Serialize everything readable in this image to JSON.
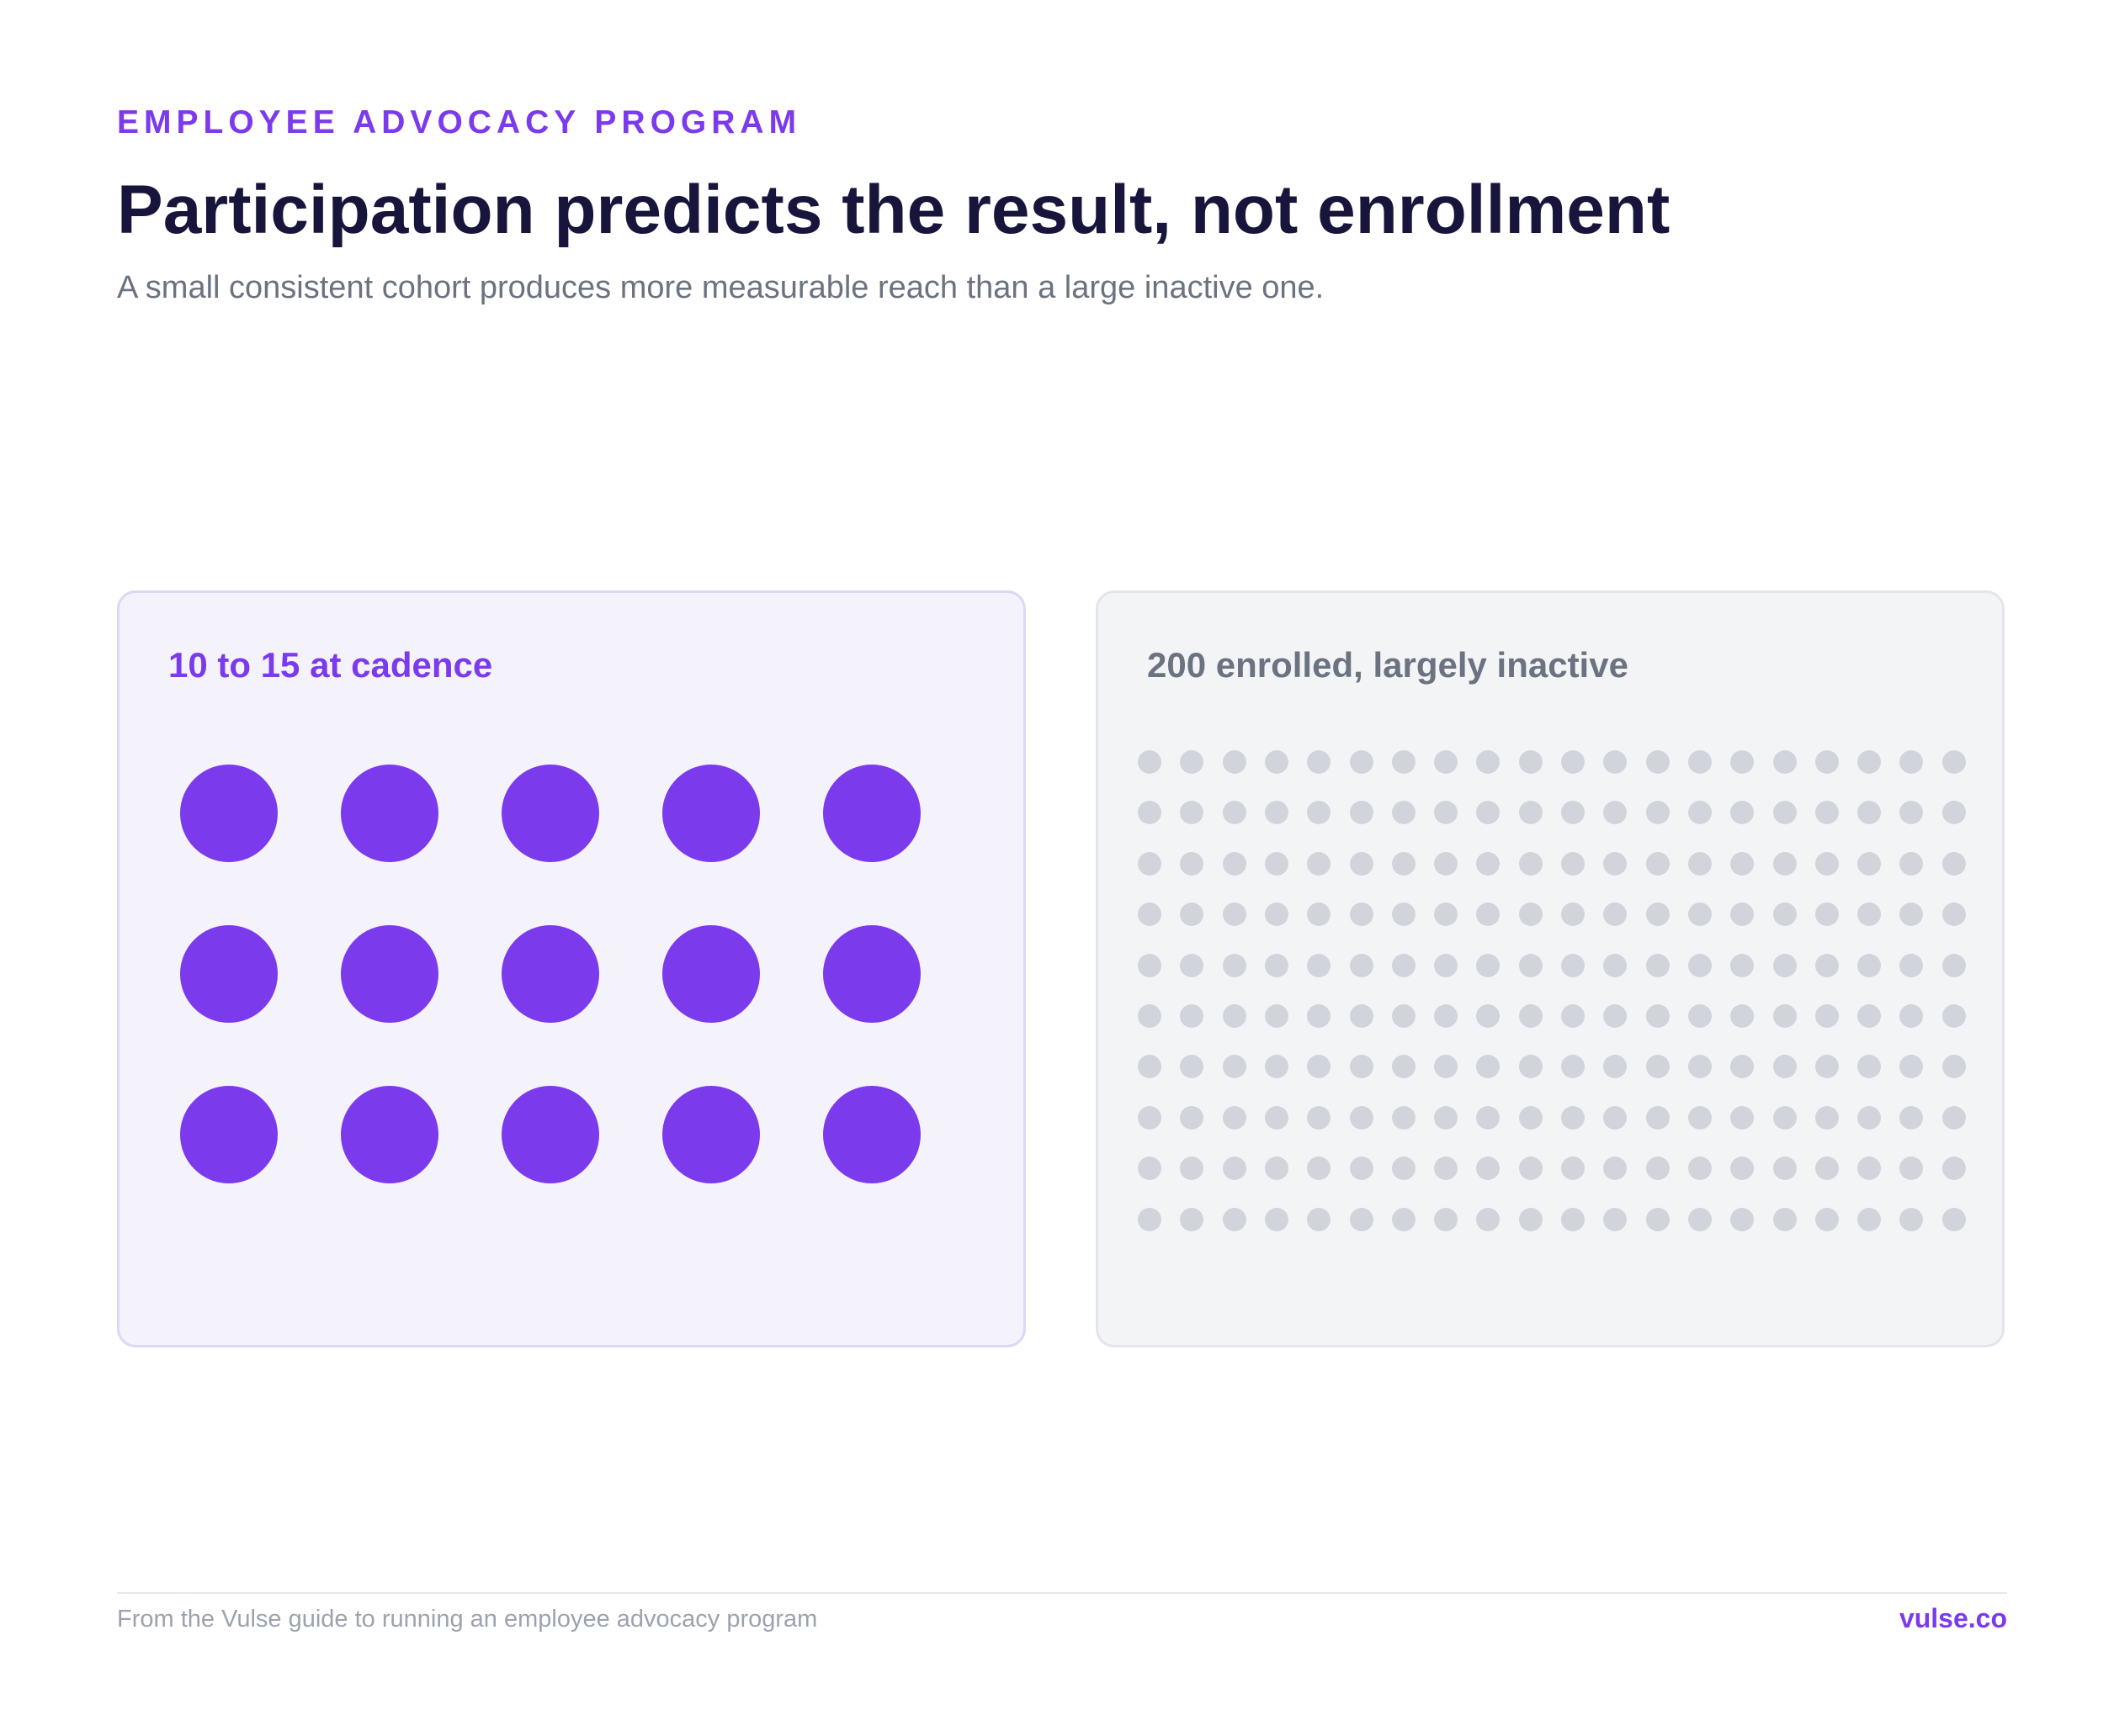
{
  "header": {
    "eyebrow": "EMPLOYEE ADVOCACY PROGRAM",
    "title": "Participation predicts the result, not enrollment",
    "subtitle": "A small consistent cohort produces more measurable reach than a large inactive one."
  },
  "panels": [
    {
      "label": "10 to 15 at cadence",
      "dot_count": 15,
      "dot_color": "#7c3aed",
      "background": "#f4f2fb"
    },
    {
      "label": "200 enrolled, largely inactive",
      "dot_count": 200,
      "dot_color": "#d1d5db",
      "background": "#f3f4f6"
    }
  ],
  "footer": {
    "note": "From the Vulse guide to running an employee advocacy program",
    "brand": "vulse.co"
  },
  "colors": {
    "accent": "#7c3aed",
    "title": "#17153b",
    "muted": "#6b7280",
    "inactive_dot": "#d1d5db"
  }
}
